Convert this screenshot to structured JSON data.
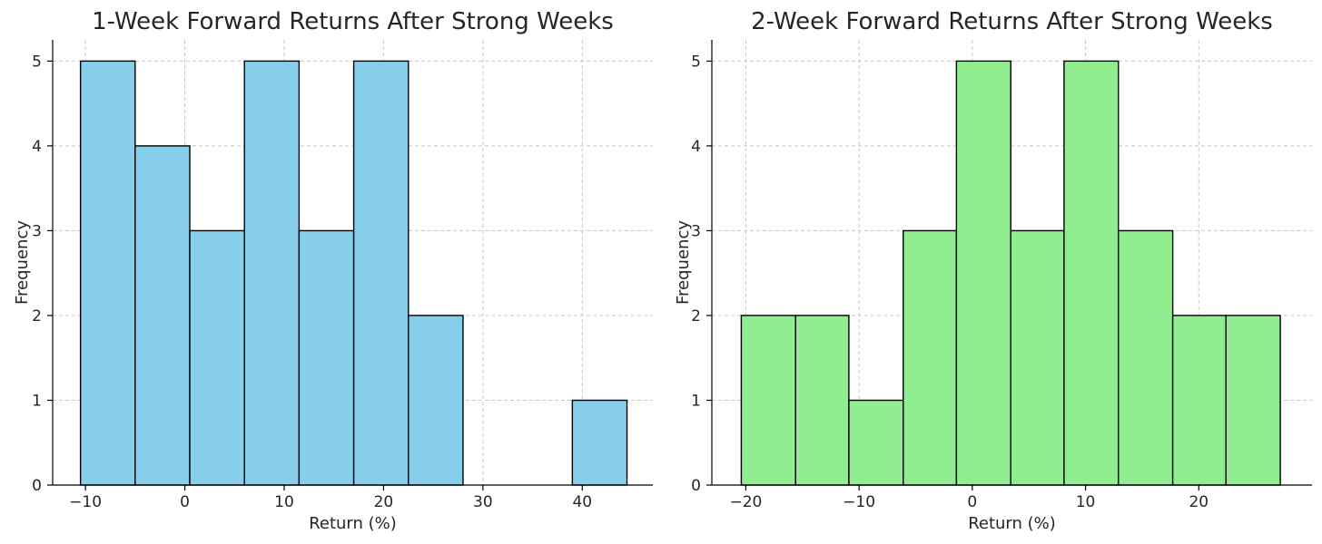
{
  "chart_data": [
    {
      "type": "bar",
      "title": "1-Week Forward Returns After Strong Weeks",
      "xlabel": "Return (%)",
      "ylabel": "Frequency",
      "color": "#87ceeb",
      "xlim": [
        -13.3,
        47.1
      ],
      "ylim": [
        0,
        5.25
      ],
      "xticks": [
        -10,
        0,
        10,
        20,
        30,
        40
      ],
      "yticks": [
        0,
        1,
        2,
        3,
        4,
        5
      ],
      "grid": true,
      "bins": [
        {
          "x0": -10.5,
          "x1": -5.0,
          "count": 5
        },
        {
          "x0": -5.0,
          "x1": 0.5,
          "count": 4
        },
        {
          "x0": 0.5,
          "x1": 6.0,
          "count": 3
        },
        {
          "x0": 6.0,
          "x1": 11.5,
          "count": 5
        },
        {
          "x0": 11.5,
          "x1": 17.0,
          "count": 3
        },
        {
          "x0": 17.0,
          "x1": 22.5,
          "count": 5
        },
        {
          "x0": 22.5,
          "x1": 28.0,
          "count": 2
        },
        {
          "x0": 28.0,
          "x1": 33.5,
          "count": 0
        },
        {
          "x0": 33.5,
          "x1": 39.0,
          "count": 0
        },
        {
          "x0": 39.0,
          "x1": 44.5,
          "count": 1
        }
      ]
    },
    {
      "type": "bar",
      "title": "2-Week Forward Returns After Strong Weeks",
      "xlabel": "Return (%)",
      "ylabel": "Frequency",
      "color": "#90ee90",
      "xlim": [
        -23.0,
        30.0
      ],
      "ylim": [
        0,
        5.25
      ],
      "xticks": [
        -20,
        -10,
        0,
        10,
        20
      ],
      "yticks": [
        0,
        1,
        2,
        3,
        4,
        5
      ],
      "grid": true,
      "bins": [
        {
          "x0": -20.4,
          "x1": -15.6,
          "count": 2
        },
        {
          "x0": -15.6,
          "x1": -10.9,
          "count": 2
        },
        {
          "x0": -10.9,
          "x1": -6.1,
          "count": 1
        },
        {
          "x0": -6.1,
          "x1": -1.4,
          "count": 3
        },
        {
          "x0": -1.4,
          "x1": 3.4,
          "count": 5
        },
        {
          "x0": 3.4,
          "x1": 8.1,
          "count": 3
        },
        {
          "x0": 8.1,
          "x1": 12.9,
          "count": 5
        },
        {
          "x0": 12.9,
          "x1": 17.7,
          "count": 3
        },
        {
          "x0": 17.7,
          "x1": 22.4,
          "count": 2
        },
        {
          "x0": 22.4,
          "x1": 27.2,
          "count": 2
        }
      ]
    }
  ]
}
